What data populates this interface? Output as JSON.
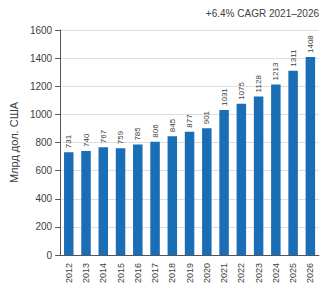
{
  "chart_data": {
    "type": "bar",
    "categories": [
      "2012",
      "2013",
      "2014",
      "2015",
      "2016",
      "2017",
      "2018",
      "2019",
      "2020",
      "2021",
      "2022",
      "2023",
      "2024",
      "2025",
      "2026"
    ],
    "values": [
      731,
      740,
      767,
      759,
      785,
      806,
      845,
      877,
      901,
      1031,
      1075,
      1128,
      1213,
      1311,
      1408
    ],
    "color": "#1a6eb5",
    "ylabel": "Млрд дол. США",
    "ylim": [
      0,
      1600
    ],
    "yticks": [
      0,
      200,
      400,
      600,
      800,
      1000,
      1200,
      1400,
      1600
    ],
    "annotation": "+6.4% CAGR 2021–2026",
    "data_labels": true,
    "grid": true
  }
}
